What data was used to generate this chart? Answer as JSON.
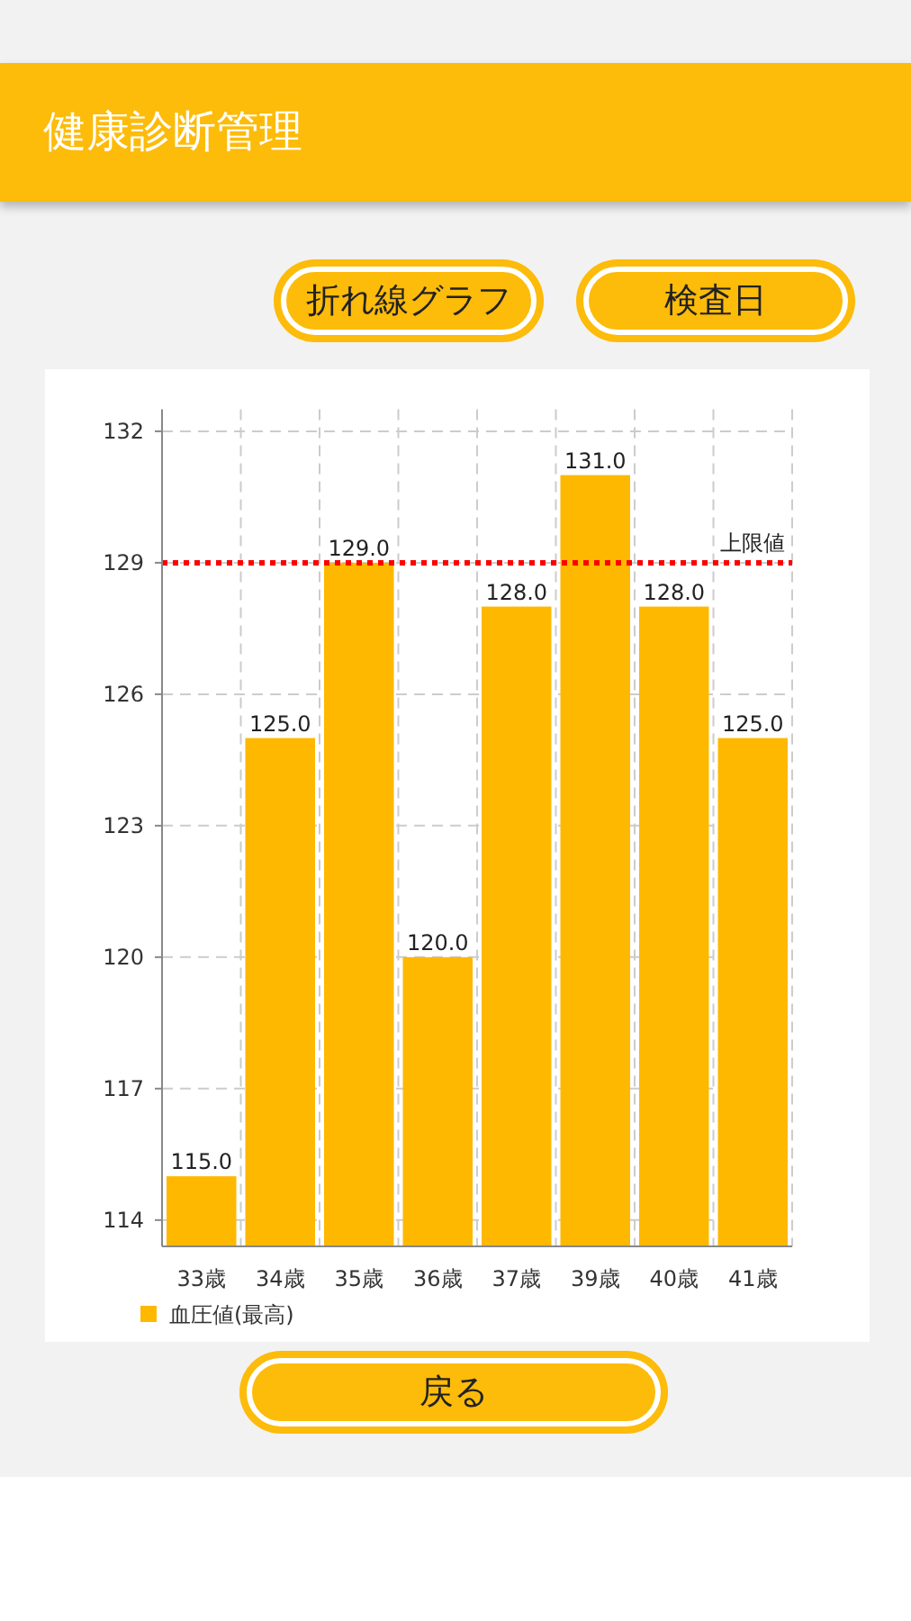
{
  "chart_data": {
    "type": "bar",
    "title": "健康診断管理",
    "annotations": [
      "折れ線グラフ",
      "検査日",
      "戻る"
    ],
    "categories": [
      "33歳",
      "34歳",
      "35歳",
      "36歳",
      "37歳",
      "39歳",
      "40歳",
      "41歳"
    ],
    "series": [
      {
        "name": "血圧値(最高)",
        "color": "#ffb800",
        "values": [
          115,
          125,
          129,
          120,
          128,
          131,
          128,
          125
        ],
        "value_labels": [
          "115.0",
          "125.0",
          "129.0",
          "120.0",
          "128.0",
          "131.0",
          "128.0",
          "125.0"
        ]
      }
    ],
    "ylim": [
      113.4,
      132.5
    ],
    "yticks": [
      114,
      117,
      120,
      123,
      126,
      129,
      132
    ],
    "grid": true,
    "legend": "bottom left",
    "ref_lines": [
      {
        "axis": "y",
        "value": 129,
        "label": "上限値",
        "color": "#ff0000",
        "line_style": "dotted"
      }
    ]
  }
}
